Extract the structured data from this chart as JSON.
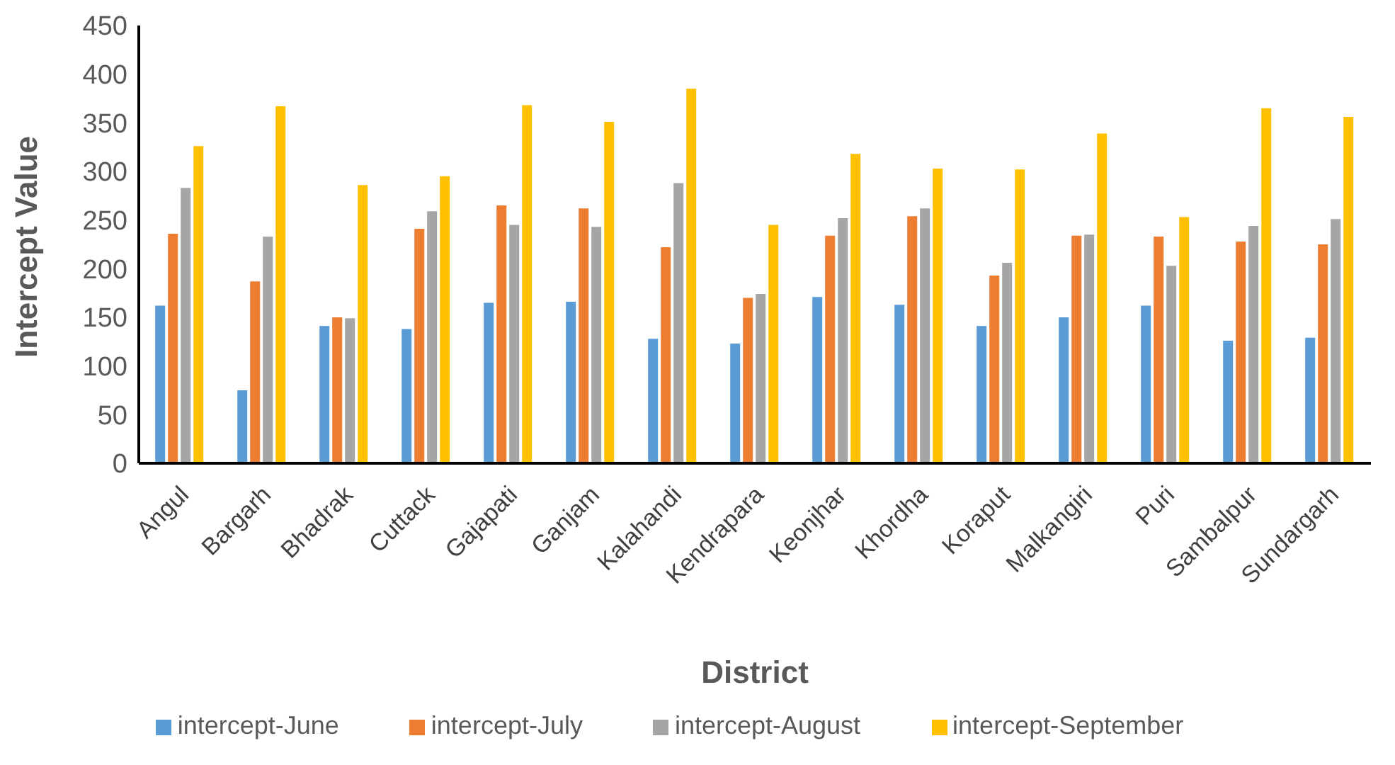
{
  "chart_data": {
    "type": "bar",
    "xlabel": "District",
    "ylabel": "Intercept Value",
    "categories": [
      "Angul",
      "Bargarh",
      "Bhadrak",
      "Cuttack",
      "Gajapati",
      "Ganjam",
      "Kalahandi",
      "Kendrapara",
      "Keonjhar",
      "Khordha",
      "Koraput",
      "Malkangiri",
      "Puri",
      "Sambalpur",
      "Sundargarh"
    ],
    "series": [
      {
        "name": "intercept-June",
        "color": "#5b9bd5",
        "values": [
          162,
          75,
          141,
          138,
          165,
          166,
          128,
          123,
          171,
          163,
          141,
          150,
          162,
          126,
          129
        ]
      },
      {
        "name": "intercept-July",
        "color": "#ed7d31",
        "values": [
          236,
          187,
          150,
          241,
          265,
          262,
          222,
          170,
          234,
          254,
          193,
          234,
          233,
          228,
          225
        ]
      },
      {
        "name": "intercept-August",
        "color": "#a5a5a5",
        "values": [
          283,
          233,
          149,
          259,
          245,
          243,
          288,
          174,
          252,
          262,
          206,
          235,
          203,
          244,
          251
        ]
      },
      {
        "name": "intercept-September",
        "color": "#ffc000",
        "values": [
          326,
          367,
          286,
          295,
          368,
          351,
          385,
          245,
          318,
          303,
          302,
          339,
          253,
          365,
          356
        ]
      }
    ],
    "ylim": [
      0,
      450
    ],
    "yticks": [
      0,
      50,
      100,
      150,
      200,
      250,
      300,
      350,
      400,
      450
    ],
    "grid": false,
    "legend": "bottom"
  }
}
